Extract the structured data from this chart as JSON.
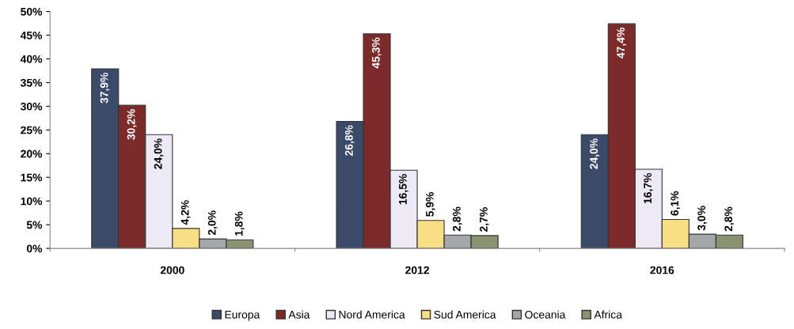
{
  "chart_data": {
    "type": "bar",
    "categories": [
      "2000",
      "2012",
      "2016"
    ],
    "series": [
      {
        "name": "Europa",
        "color": "#3c4a69",
        "values": [
          37.9,
          26.8,
          24.0
        ],
        "value_labels": [
          "37,9%",
          "26,8%",
          "24,0%"
        ]
      },
      {
        "name": "Asia",
        "color": "#7a2b2a",
        "values": [
          30.2,
          45.3,
          47.4
        ],
        "value_labels": [
          "30,2%",
          "45,3%",
          "47,4%"
        ]
      },
      {
        "name": "Nord America",
        "color": "#ede9f5",
        "values": [
          24.0,
          16.5,
          16.7
        ],
        "value_labels": [
          "24,0%",
          "16,5%",
          "16,7%"
        ]
      },
      {
        "name": "Sud America",
        "color": "#f8df86",
        "values": [
          4.2,
          5.9,
          6.1
        ],
        "value_labels": [
          "4,2%",
          "5,9%",
          "6,1%"
        ]
      },
      {
        "name": "Oceania",
        "color": "#a5a7aa",
        "values": [
          2.0,
          2.8,
          3.0
        ],
        "value_labels": [
          "2,0%",
          "2,8%",
          "3,0%"
        ]
      },
      {
        "name": "Africa",
        "color": "#8b9272",
        "values": [
          1.8,
          2.7,
          2.8
        ],
        "value_labels": [
          "1,8%",
          "2,7%",
          "2,8%"
        ]
      }
    ],
    "ylim": [
      0,
      50
    ],
    "yticks": [
      {
        "value": 0,
        "label": "0%"
      },
      {
        "value": 5,
        "label": "5%"
      },
      {
        "value": 10,
        "label": "10%"
      },
      {
        "value": 15,
        "label": "15%"
      },
      {
        "value": 20,
        "label": "20%"
      },
      {
        "value": 25,
        "label": "25%"
      },
      {
        "value": 30,
        "label": "30%"
      },
      {
        "value": 35,
        "label": "35%"
      },
      {
        "value": 40,
        "label": "40%"
      },
      {
        "value": 45,
        "label": "45%"
      },
      {
        "value": 50,
        "label": "50%"
      }
    ],
    "grid": false,
    "legend": "bottom"
  }
}
